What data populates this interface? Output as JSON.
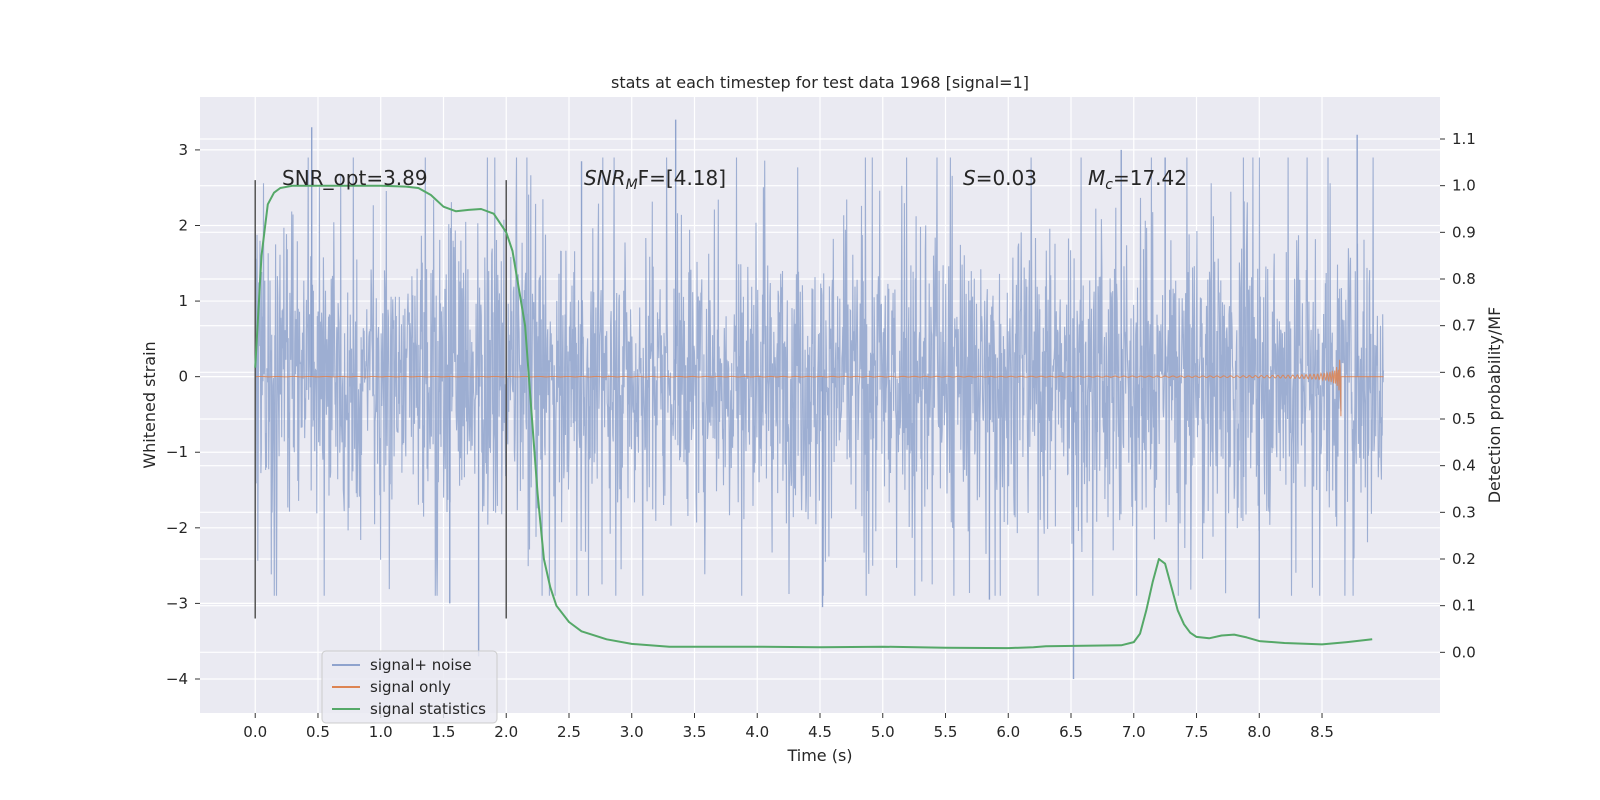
{
  "chart_data": {
    "type": "line",
    "title": "stats at each timestep for test data 1968 [signal=1]",
    "xlabel": "Time (s)",
    "ylabel_left": "Whitened strain",
    "ylabel_right": "Detection probability/MF",
    "xlim": [
      -0.44,
      9.44
    ],
    "ylim_left": [
      -4.45,
      3.7
    ],
    "ylim_right": [
      -0.13,
      1.19
    ],
    "x_ticks": [
      0.0,
      0.5,
      1.0,
      1.5,
      2.0,
      2.5,
      3.0,
      3.5,
      4.0,
      4.5,
      5.0,
      5.5,
      6.0,
      6.5,
      7.0,
      7.5,
      8.0,
      8.5
    ],
    "x_tick_labels": [
      "0.0",
      "0.5",
      "1.0",
      "1.5",
      "2.0",
      "2.5",
      "3.0",
      "3.5",
      "4.0",
      "4.5",
      "5.0",
      "5.5",
      "6.0",
      "6.5",
      "7.0",
      "7.5",
      "8.0",
      "8.5"
    ],
    "y_left_ticks": [
      3,
      2,
      1,
      0,
      -1,
      -2,
      -3,
      -4
    ],
    "y_left_tick_labels": [
      "3",
      "2",
      "1",
      "0",
      "−1",
      "−2",
      "−3",
      "−4"
    ],
    "y_right_ticks": [
      1.1,
      1.0,
      0.9,
      0.8,
      0.7,
      0.6,
      0.5,
      0.4,
      0.3,
      0.2,
      0.1,
      0.0
    ],
    "y_right_tick_labels": [
      "1.1",
      "1.0",
      "0.9",
      "0.8",
      "0.7",
      "0.6",
      "0.5",
      "0.4",
      "0.3",
      "0.2",
      "0.1",
      "0.0"
    ],
    "grid": true,
    "legend_position": "lower-left",
    "series": [
      {
        "name": "signal+ noise",
        "color": "#8fa3cd",
        "axis": "left",
        "t_start": 0.0,
        "t_end": 8.99,
        "core_amplitude": 0.9,
        "extremes": [
          {
            "t": 0.45,
            "v": 3.3
          },
          {
            "t": 1.78,
            "v": -3.7
          },
          {
            "t": 1.55,
            "v": -3.0
          },
          {
            "t": 3.35,
            "v": 3.4
          },
          {
            "t": 6.52,
            "v": -4.0
          },
          {
            "t": 8.78,
            "v": 3.2
          },
          {
            "t": 7.25,
            "v": 2.9
          },
          {
            "t": 4.52,
            "v": -3.05
          },
          {
            "t": 8.0,
            "v": -3.2
          },
          {
            "t": 2.6,
            "v": 2.85
          },
          {
            "t": 5.85,
            "v": -2.95
          },
          {
            "t": 6.9,
            "v": 3.0
          }
        ]
      },
      {
        "name": "signal only",
        "color": "#dd8452",
        "axis": "left",
        "t_start": 0.0,
        "t_merger": 8.65,
        "t_end": 8.99,
        "peak_amplitude": 0.6
      },
      {
        "name": "signal statistics",
        "color": "#55a868",
        "axis": "right",
        "x": [
          0.0,
          0.05,
          0.1,
          0.15,
          0.2,
          0.3,
          0.5,
          1.0,
          1.2,
          1.3,
          1.4,
          1.5,
          1.6,
          1.7,
          1.8,
          1.9,
          2.0,
          2.05,
          2.1,
          2.15,
          2.2,
          2.25,
          2.3,
          2.35,
          2.4,
          2.5,
          2.6,
          2.8,
          3.0,
          3.3,
          3.6,
          4.0,
          4.5,
          5.0,
          5.5,
          6.0,
          6.2,
          6.3,
          6.6,
          6.9,
          7.0,
          7.05,
          7.1,
          7.15,
          7.2,
          7.25,
          7.3,
          7.35,
          7.4,
          7.45,
          7.5,
          7.6,
          7.7,
          7.8,
          7.9,
          8.0,
          8.2,
          8.5,
          8.7,
          8.9
        ],
        "y": [
          0.61,
          0.85,
          0.96,
          0.985,
          0.995,
          1.0,
          1.0,
          1.0,
          0.998,
          0.995,
          0.98,
          0.955,
          0.945,
          0.948,
          0.95,
          0.94,
          0.9,
          0.86,
          0.78,
          0.7,
          0.52,
          0.34,
          0.2,
          0.14,
          0.1,
          0.065,
          0.045,
          0.028,
          0.018,
          0.012,
          0.012,
          0.012,
          0.011,
          0.012,
          0.01,
          0.009,
          0.011,
          0.013,
          0.014,
          0.015,
          0.022,
          0.04,
          0.09,
          0.15,
          0.2,
          0.19,
          0.14,
          0.09,
          0.06,
          0.042,
          0.033,
          0.03,
          0.036,
          0.038,
          0.032,
          0.024,
          0.02,
          0.017,
          0.022,
          0.028
        ]
      }
    ],
    "vlines": [
      {
        "x": 0.0,
        "y_from": -3.2,
        "y_to": 2.6
      },
      {
        "x": 2.0,
        "y_from": -3.2,
        "y_to": 2.6
      }
    ]
  },
  "annotations": {
    "snr_opt": "SNR_opt=3.89",
    "snr_mf": "SNR",
    "snr_mf_sub": "M",
    "snr_mf_rest": "F=[4.18]",
    "s_var": "S",
    "s_val": "=0.03",
    "mc_var": "M",
    "mc_sub": "c",
    "mc_val": "=17.42"
  },
  "colors": {
    "axes_face": "#eaeaf2",
    "grid": "#ffffff",
    "vline": "#555555"
  }
}
